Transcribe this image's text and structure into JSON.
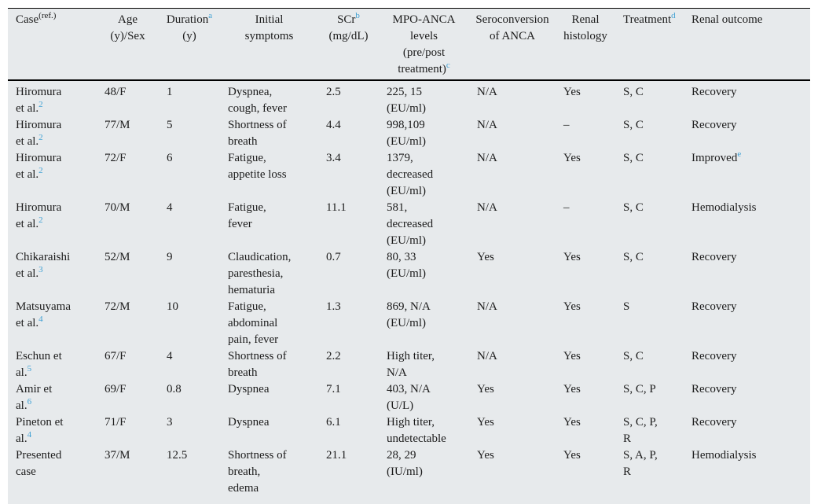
{
  "meta": {
    "bg_color": "#e7eaec",
    "link_color": "#3fa0d3",
    "text_color": "#1c1c1c"
  },
  "table": {
    "header": [
      "Case~(ref.)~",
      "Age\n(y)/Sex",
      "Duration^a^\n(y)",
      "Initial\nsymptoms",
      "SCr^b^\n(mg/dL)",
      "MPO-ANCA\nlevels\n(pre/post\ntreatment)^c^",
      "Seroconversion\nof ANCA",
      "Renal\nhistology",
      "Treatment^d^",
      "Renal outcome"
    ],
    "rows": [
      [
        "Hiromura\net al.^2^",
        "48/F",
        "1",
        "Dyspnea,\ncough, fever",
        "2.5",
        "225, 15\n(EU/ml)",
        "N/A",
        "Yes",
        "S, C",
        "Recovery"
      ],
      [
        "Hiromura\net al.^2^",
        "77/M",
        "5",
        "Shortness of\nbreath",
        "4.4",
        "998,109\n(EU/ml)",
        "N/A",
        "–",
        "S, C",
        "Recovery"
      ],
      [
        "Hiromura\net al.^2^",
        "72/F",
        "6",
        "Fatigue,\nappetite loss",
        "3.4",
        "1379,\ndecreased\n(EU/ml)",
        "N/A",
        "Yes",
        "S, C",
        "Improved^e^"
      ],
      [
        "Hiromura\net al.^2^",
        "70/M",
        "4",
        "Fatigue,\nfever",
        "11.1",
        "581,\ndecreased\n(EU/ml)",
        "N/A",
        "–",
        "S, C",
        "Hemodialysis"
      ],
      [
        "Chikaraishi\net al.^3^",
        "52/M",
        "9",
        "Claudication,\nparesthesia,\nhematuria",
        "0.7",
        "80, 33\n(EU/ml)",
        "Yes",
        "Yes",
        "S, C",
        "Recovery"
      ],
      [
        "Matsuyama\net al.^4^",
        "72/M",
        "10",
        "Fatigue,\nabdominal\npain, fever",
        "1.3",
        "869, N/A\n(EU/ml)",
        "N/A",
        "Yes",
        "S",
        "Recovery"
      ],
      [
        "Eschun et\nal.^5^",
        "67/F",
        "4",
        "Shortness of\nbreath",
        "2.2",
        "High titer,\nN/A",
        "N/A",
        "Yes",
        "S, C",
        "Recovery"
      ],
      [
        "Amir et\nal.^6^",
        "69/F",
        "0.8",
        "Dyspnea",
        "7.1",
        "403, N/A\n(U/L)",
        "Yes",
        "Yes",
        "S, C, P",
        "Recovery"
      ],
      [
        "Pineton et\nal.^4^",
        "71/F",
        "3",
        "Dyspnea",
        "6.1",
        "High titer,\nundetectable",
        "Yes",
        "Yes",
        "S, C, P,\nR",
        "Recovery"
      ],
      [
        "Presented\ncase",
        "37/M",
        "12.5",
        "Shortness of\nbreath,\nedema",
        "21.1",
        "28, 29\n(IU/ml)",
        "Yes",
        "Yes",
        "S, A, P,\nR",
        "Hemodialysis"
      ]
    ]
  }
}
